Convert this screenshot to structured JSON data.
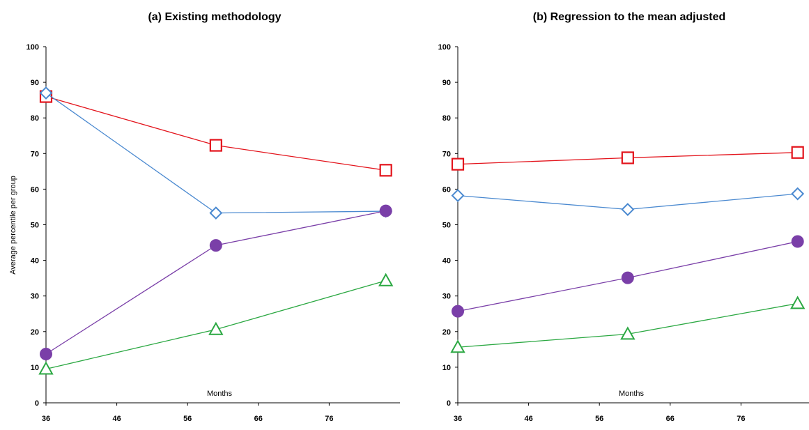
{
  "ylabel": "Average percentile per group",
  "chart_data": [
    {
      "type": "line",
      "title": "(a) Existing methodology",
      "xlabel": "Months",
      "ylabel": "Average percentile per group",
      "xlim": [
        36,
        86
      ],
      "ylim": [
        0,
        100
      ],
      "xticks": [
        36,
        46,
        56,
        66,
        76
      ],
      "yticks": [
        0,
        10,
        20,
        30,
        40,
        50,
        60,
        70,
        80,
        90,
        100
      ],
      "grid": false,
      "series": [
        {
          "color": "#E3141C",
          "marker": "square",
          "x": [
            36,
            60,
            84
          ],
          "values": [
            86,
            72.3,
            65.3
          ]
        },
        {
          "color": "#4A89D0",
          "marker": "diamond",
          "x": [
            36,
            60,
            84
          ],
          "values": [
            87,
            53.3,
            53.8
          ]
        },
        {
          "color": "#7A3FA8",
          "marker": "circle",
          "x": [
            36,
            60,
            84
          ],
          "values": [
            13.7,
            44.2,
            53.9
          ]
        },
        {
          "color": "#2BA842",
          "marker": "triangle",
          "x": [
            36,
            60,
            84
          ],
          "values": [
            9.5,
            20.6,
            34.3
          ]
        }
      ]
    },
    {
      "type": "line",
      "title": "(b) Regression to the mean adjusted",
      "xlabel": "Months",
      "ylabel": "",
      "xlim": [
        36,
        86
      ],
      "ylim": [
        0,
        100
      ],
      "xticks": [
        36,
        46,
        56,
        66,
        76
      ],
      "yticks": [
        0,
        10,
        20,
        30,
        40,
        50,
        60,
        70,
        80,
        90,
        100
      ],
      "grid": false,
      "series": [
        {
          "color": "#E3141C",
          "marker": "square",
          "x": [
            36,
            60,
            84
          ],
          "values": [
            67,
            68.8,
            70.3
          ]
        },
        {
          "color": "#4A89D0",
          "marker": "diamond",
          "x": [
            36,
            60,
            84
          ],
          "values": [
            58.2,
            54.3,
            58.7
          ]
        },
        {
          "color": "#7A3FA8",
          "marker": "circle",
          "x": [
            36,
            60,
            84
          ],
          "values": [
            25.7,
            35.1,
            45.3
          ]
        },
        {
          "color": "#2BA842",
          "marker": "triangle",
          "x": [
            36,
            60,
            84
          ],
          "values": [
            15.6,
            19.3,
            27.9
          ]
        }
      ]
    }
  ]
}
